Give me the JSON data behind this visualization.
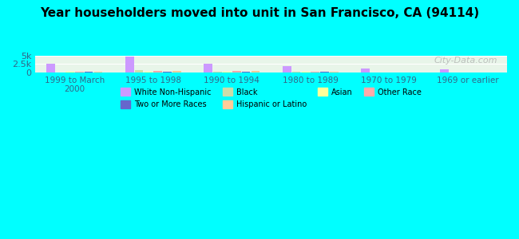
{
  "title": "Year householders moved into unit in San Francisco, CA (94114)",
  "background_color": "#00FFFF",
  "plot_bg_gradient": true,
  "categories": [
    "1999 to March\n2000",
    "1995 to 1998",
    "1990 to 1994",
    "1980 to 1989",
    "1970 to 1979",
    "1969 or earlier"
  ],
  "series": {
    "White Non-Hispanic": {
      "color": "#cc99ff",
      "values": [
        2500,
        4700,
        2700,
        1800,
        1100,
        900
      ]
    },
    "Black": {
      "color": "#ccddaa",
      "values": [
        80,
        600,
        130,
        120,
        60,
        30
      ]
    },
    "Asian": {
      "color": "#ffff99",
      "values": [
        120,
        100,
        200,
        170,
        60,
        20
      ]
    },
    "Other Race": {
      "color": "#ffaaaa",
      "values": [
        100,
        450,
        380,
        300,
        80,
        60
      ]
    },
    "Two or More Races": {
      "color": "#6666cc",
      "values": [
        130,
        280,
        200,
        140,
        30,
        20
      ]
    },
    "Hispanic or Latino": {
      "color": "#ffcc99",
      "values": [
        100,
        430,
        380,
        110,
        70,
        80
      ]
    }
  },
  "ylim": [
    0,
    5000
  ],
  "yticks": [
    0,
    2500,
    5000
  ],
  "ytick_labels": [
    "0",
    "2.5k",
    "5k"
  ],
  "watermark": "City-Data.com"
}
